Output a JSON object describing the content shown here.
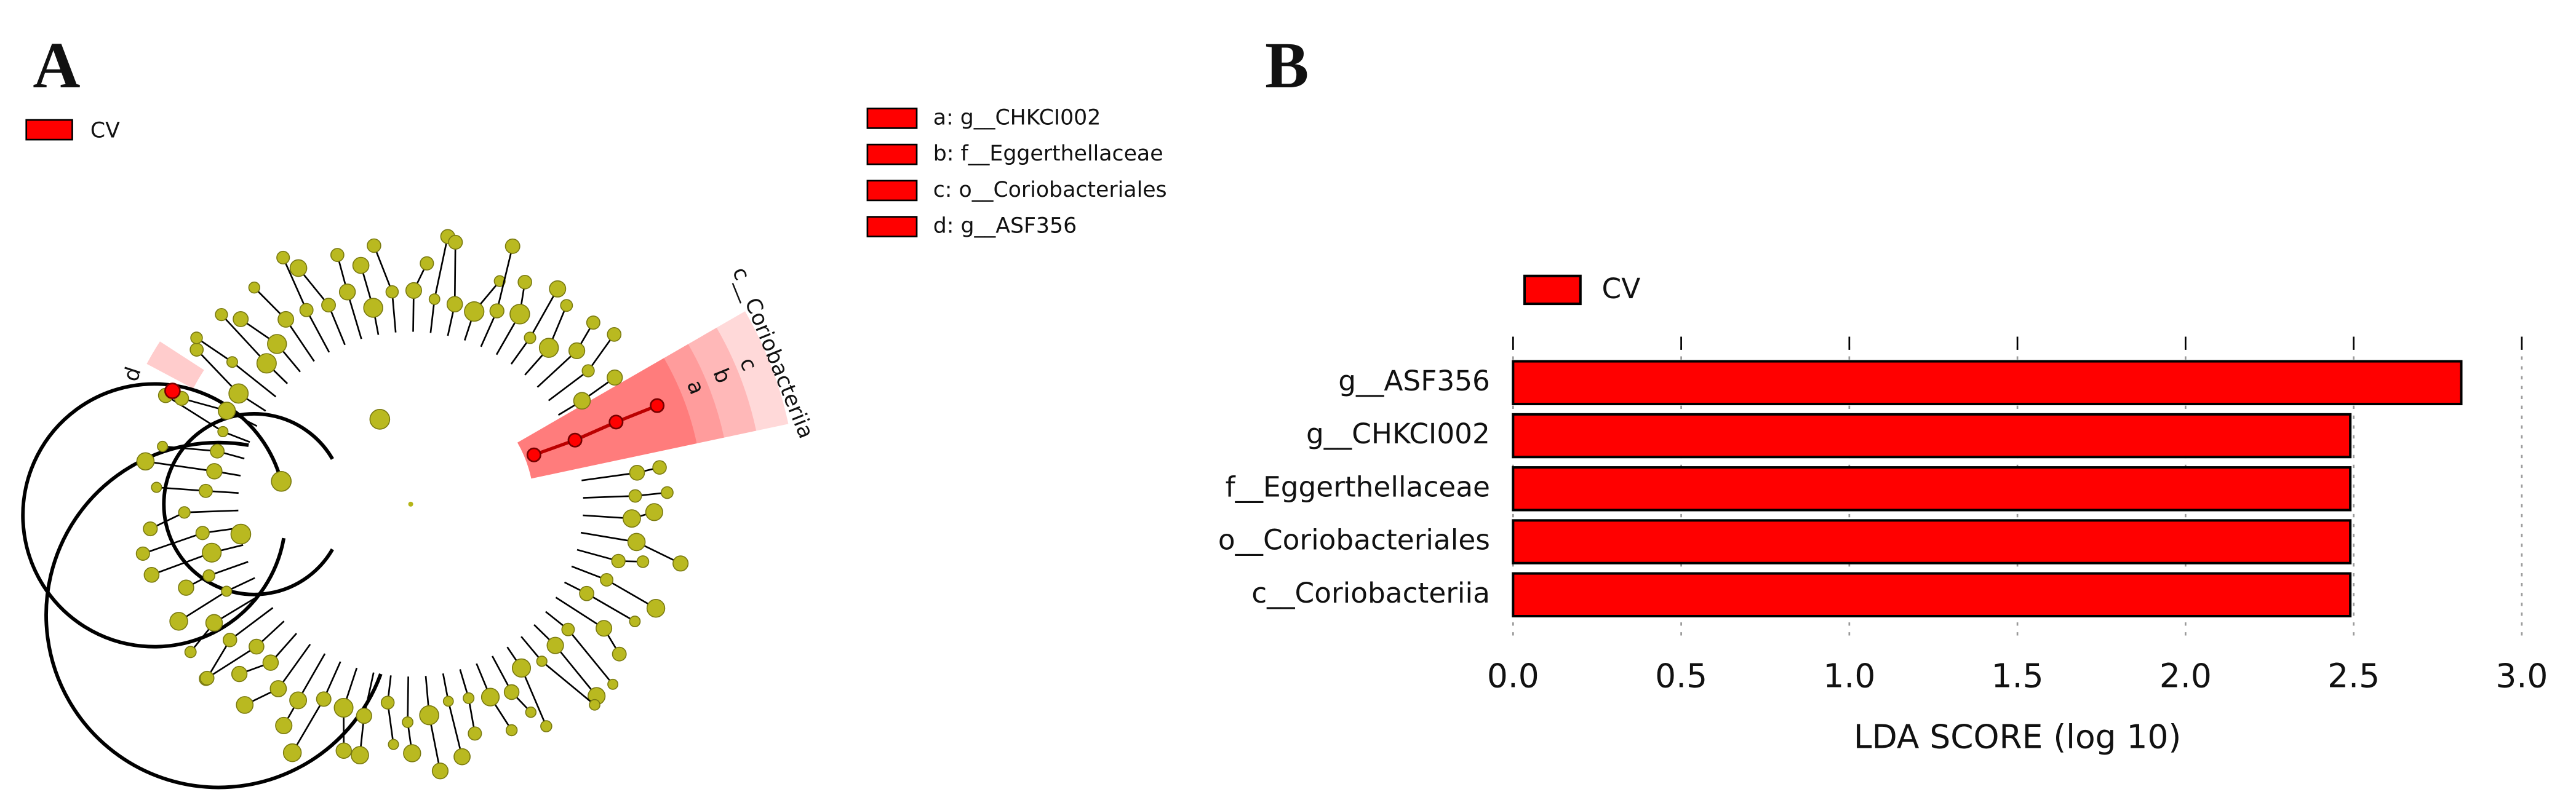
{
  "chart_data": [
    {
      "type": "cladogram",
      "panel_label": "A",
      "legend": {
        "name": "CV",
        "color": "#ff0000"
      },
      "keys": [
        "a: g__CHKCI002",
        "b: f__Eggerthellaceae",
        "c: o__Coriobacteriales",
        "d: g__ASF356"
      ],
      "highlight_labels": [
        "a",
        "b",
        "c",
        "d"
      ],
      "clade_label": "c__Coriobacteriia"
    },
    {
      "type": "hbar",
      "panel_label": "B",
      "categories": [
        "g__ASF356",
        "g__CHKCI002",
        "f__Eggerthellaceae",
        "o__Coriobacteriales",
        "c__Coriobacteriia"
      ],
      "series": [
        {
          "name": "CV",
          "color": "#ff0000",
          "values": [
            2.82,
            2.49,
            2.49,
            2.49,
            2.49
          ]
        }
      ],
      "xlim": [
        0,
        3
      ],
      "xticks": [
        {
          "value": 0,
          "label": "0.0"
        },
        {
          "value": 0.5,
          "label": "0.5"
        },
        {
          "value": 1,
          "label": "1.0"
        },
        {
          "value": 1.5,
          "label": "1.5"
        },
        {
          "value": 2,
          "label": "2.0"
        },
        {
          "value": 2.5,
          "label": "2.5"
        },
        {
          "value": 3,
          "label": "3.0"
        }
      ],
      "xlabel": "LDA SCORE (log 10)",
      "grid": true
    }
  ]
}
